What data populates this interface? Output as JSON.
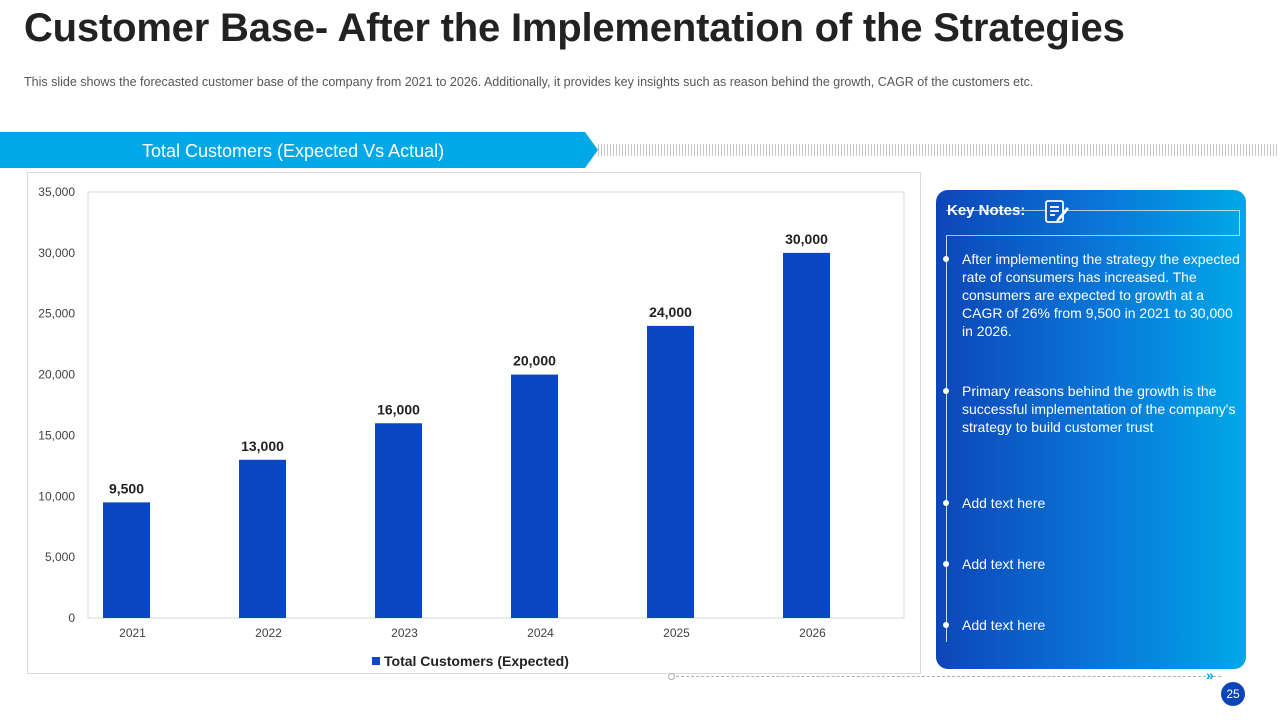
{
  "slide": {
    "title": "Customer Base- After the Implementation of the Strategies",
    "subtitle": "This slide shows the forecasted  customer base of the company from  2021 to 2026.  Additionally, it provides  key insights such as reason behind the growth,  CAGR  of the customers etc.",
    "banner": "Total Customers (Expected Vs Actual)",
    "page_number": "25",
    "footer_arrows": "»"
  },
  "colors": {
    "bar": "#0a47c2",
    "accent": "#00a8e8",
    "notes_dark": "#0d45b8",
    "notes_light": "#00a8e8"
  },
  "key_notes": {
    "header": "Key Notes:",
    "icon": "edit-notes-icon",
    "items": [
      "After implementing the strategy the expected rate of consumers has increased. The consumers are expected to growth at a CAGR of 26% from 9,500 in 2021 to 30,000 in 2026.",
      "Primary reasons behind the growth is the successful implementation of the company's strategy to build customer trust",
      "Add text here",
      "Add text here",
      "Add text here"
    ]
  },
  "chart_data": {
    "type": "bar",
    "title": "Total Customers (Expected Vs Actual)",
    "categories": [
      "2021",
      "2022",
      "2023",
      "2024",
      "2025",
      "2026"
    ],
    "series": [
      {
        "name": "Total Customers (Expected)",
        "values": [
          9500,
          13000,
          16000,
          20000,
          24000,
          30000
        ]
      }
    ],
    "data_labels": [
      "9,500",
      "13,000",
      "16,000",
      "20,000",
      "24,000",
      "30,000"
    ],
    "yticks": [
      "0",
      "5,000",
      "10,000",
      "15,000",
      "20,000",
      "25,000",
      "30,000",
      "35,000"
    ],
    "ylim": [
      0,
      35000
    ],
    "xlabel": "",
    "ylabel": "",
    "legend": "bottom",
    "grid": false
  }
}
